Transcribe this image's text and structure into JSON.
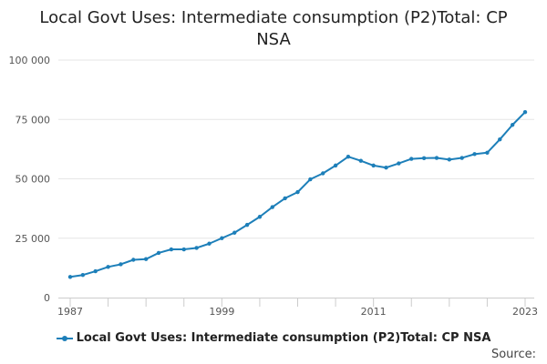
{
  "chart_data": {
    "type": "line",
    "title": "Local Govt Uses: Intermediate consumption (P2)Total: CP NSA",
    "xlabel": "",
    "ylabel": "",
    "x": [
      1987,
      1988,
      1989,
      1990,
      1991,
      1992,
      1993,
      1994,
      1995,
      1996,
      1997,
      1998,
      1999,
      2000,
      2001,
      2002,
      2003,
      2004,
      2005,
      2006,
      2007,
      2008,
      2009,
      2010,
      2011,
      2012,
      2013,
      2014,
      2015,
      2016,
      2017,
      2018,
      2019,
      2020,
      2021,
      2022,
      2023
    ],
    "x_tick_labels": [
      "1987",
      "1999",
      "2011",
      "2023"
    ],
    "y_tick_labels": [
      "0",
      "25 000",
      "50 000",
      "75 000",
      "100 000"
    ],
    "ylim": [
      0,
      100000
    ],
    "grid": true,
    "legend_position": "bottom",
    "series": [
      {
        "name": "Local Govt Uses: Intermediate consumption (P2)Total: CP NSA",
        "color": "#1d7fb9",
        "values": [
          8700,
          9500,
          11100,
          12900,
          14000,
          15900,
          16200,
          18800,
          20300,
          20300,
          20900,
          22700,
          25000,
          27300,
          30600,
          34000,
          38100,
          41800,
          44400,
          49800,
          52300,
          55600,
          59300,
          57600,
          55600,
          54700,
          56500,
          58400,
          58700,
          58800,
          58100,
          58800,
          60400,
          61000,
          66600,
          72700,
          78100
        ]
      }
    ]
  },
  "source_label": "Source:"
}
